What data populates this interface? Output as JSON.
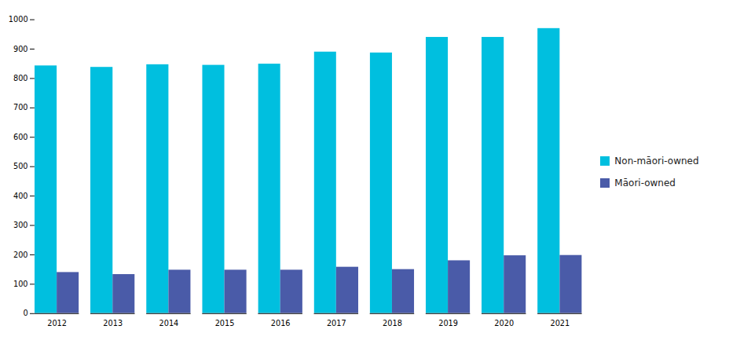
{
  "chart_data": {
    "type": "bar",
    "categories": [
      "2012",
      "2013",
      "2014",
      "2015",
      "2016",
      "2017",
      "2018",
      "2019",
      "2020",
      "2021"
    ],
    "series": [
      {
        "name": "Non-māori-owned",
        "color": "#00BFDF",
        "values": [
          843,
          838,
          847,
          845,
          849,
          890,
          887,
          940,
          940,
          970
        ]
      },
      {
        "name": "Māori-owned",
        "color": "#4A5BA8",
        "values": [
          140,
          133,
          148,
          148,
          148,
          158,
          150,
          180,
          197,
          198
        ]
      }
    ],
    "ylim": [
      0,
      1000
    ],
    "yticks": [
      0,
      100,
      200,
      300,
      400,
      500,
      600,
      700,
      800,
      900,
      1000
    ],
    "grid": false,
    "legend": "right"
  }
}
